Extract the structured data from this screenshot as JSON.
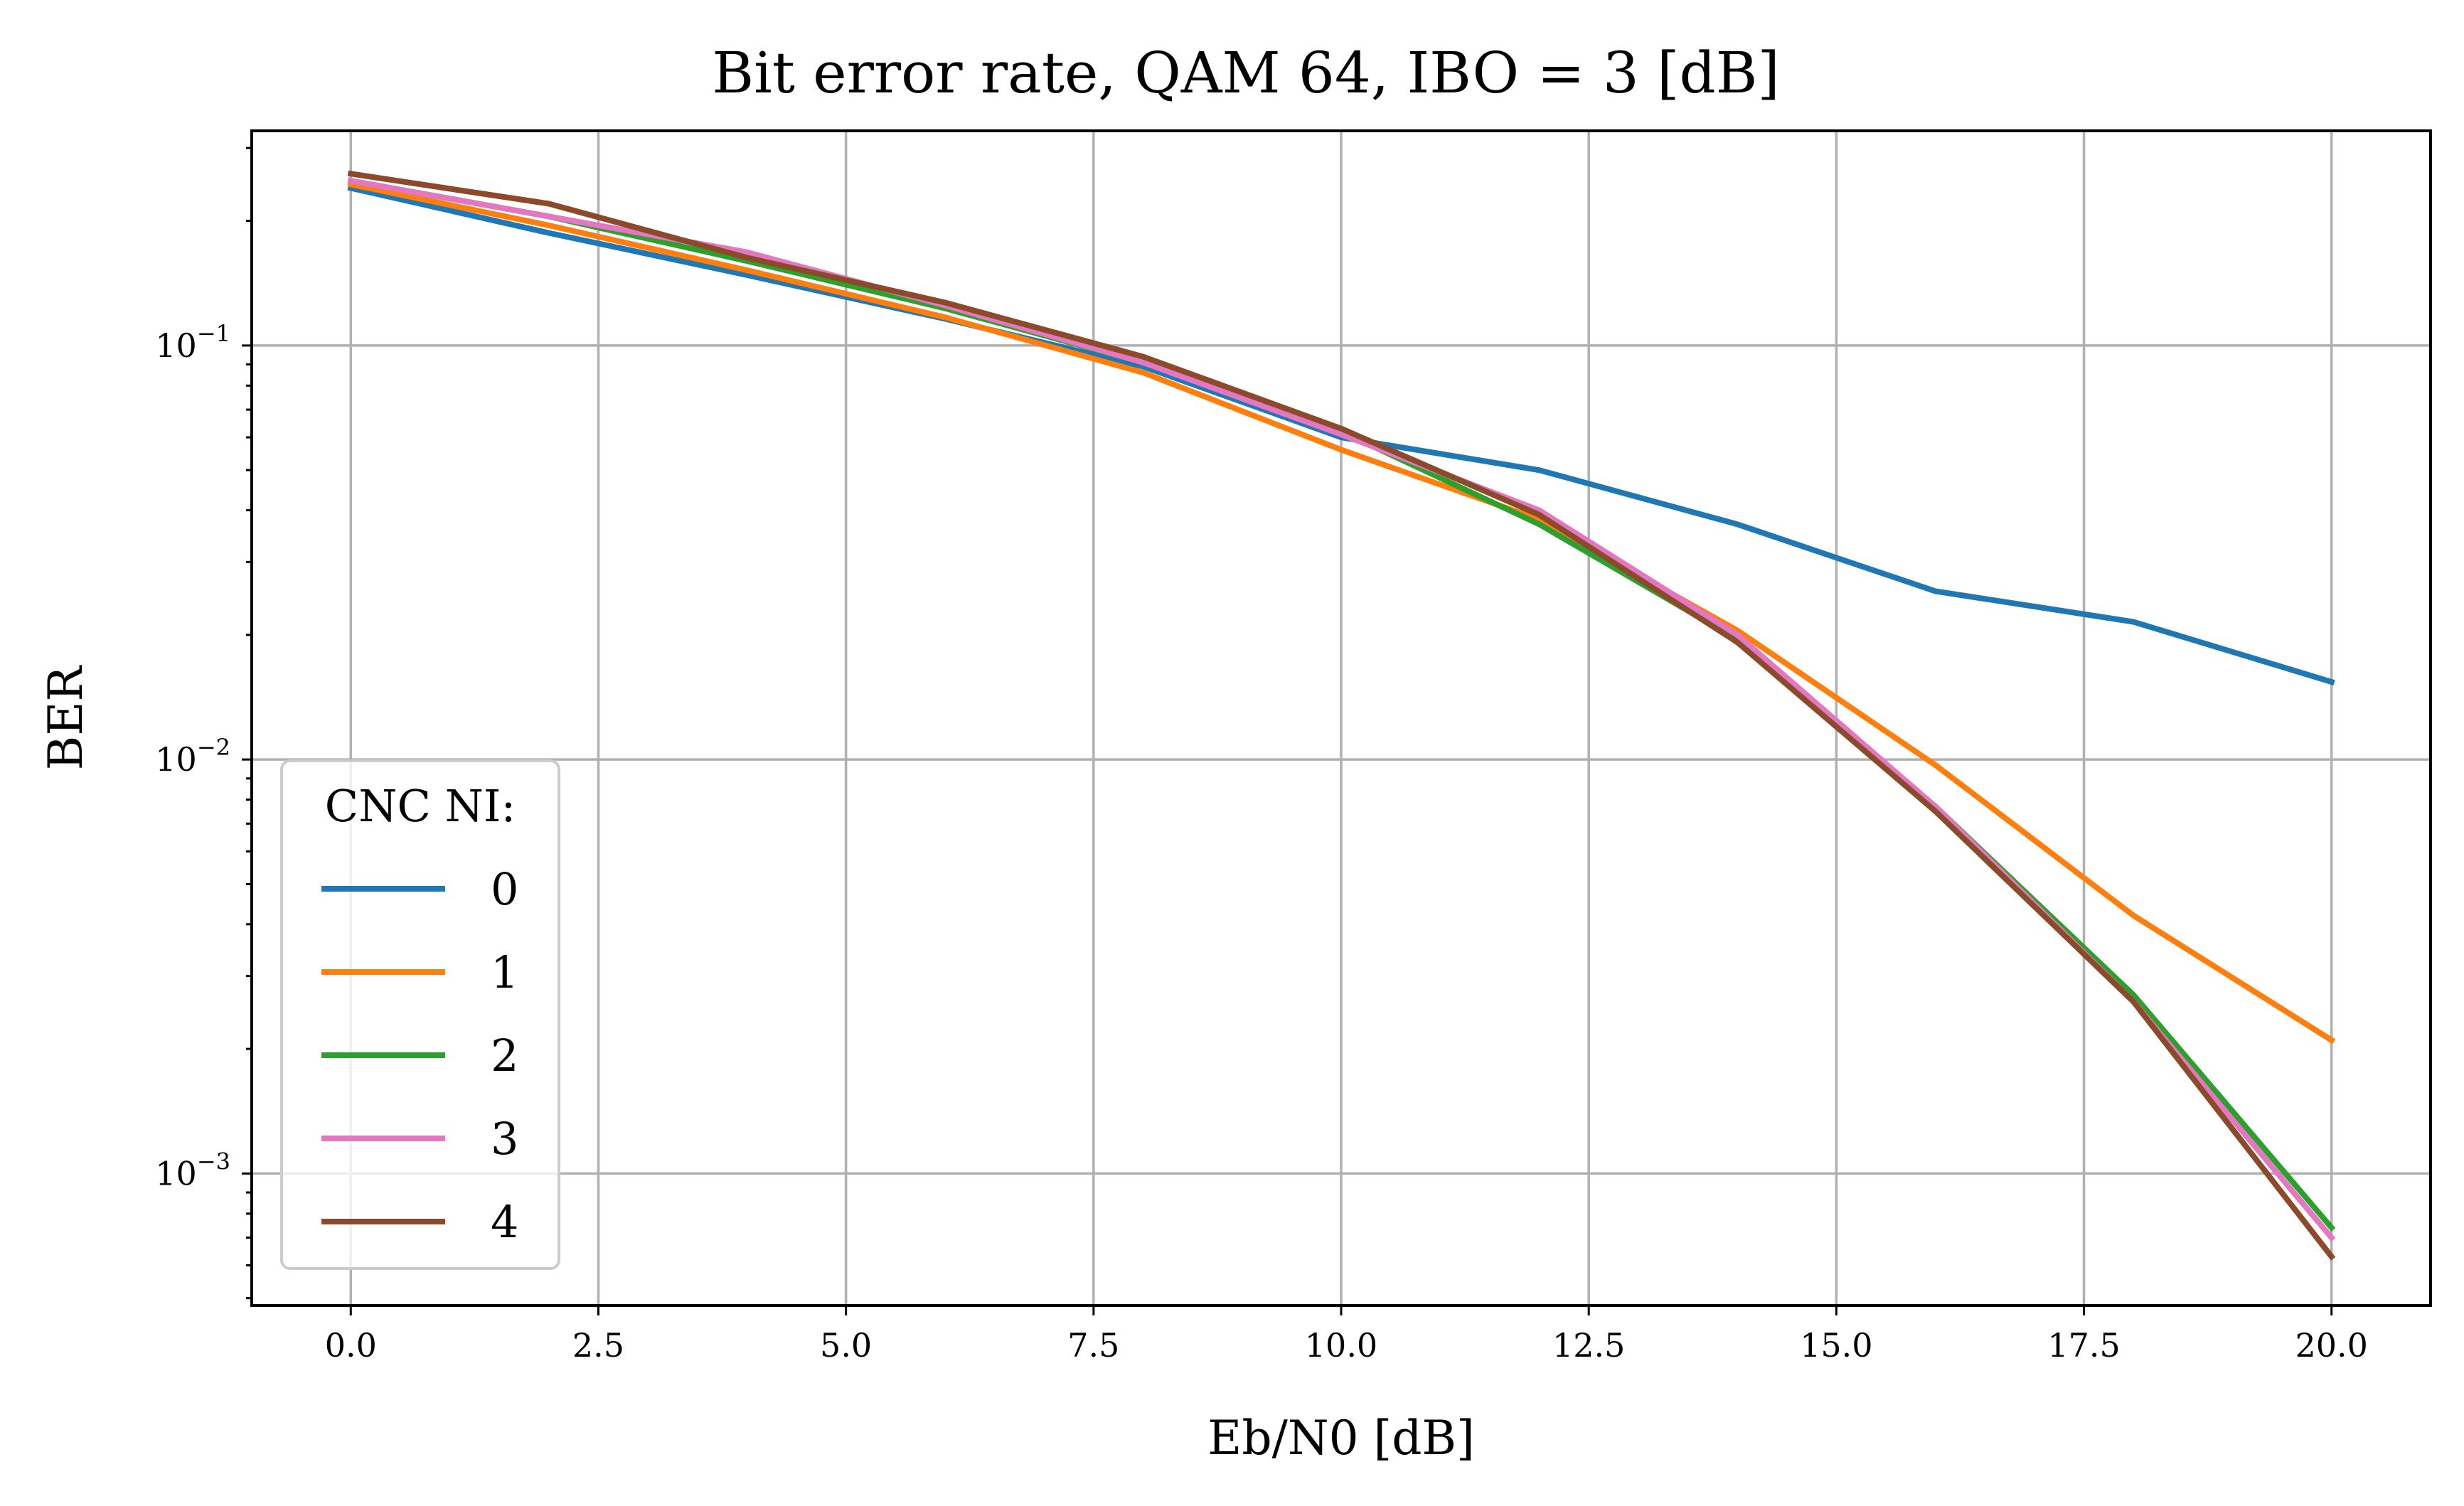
{
  "chart_data": {
    "type": "line",
    "title": "Bit error rate, QAM 64, IBO = 3 [dB]",
    "xlabel": "Eb/N0 [dB]",
    "ylabel": "BER",
    "xlim": [
      -1.0,
      21.0
    ],
    "ylim": [
      0.00048,
      0.33
    ],
    "yscale": "log",
    "grid": true,
    "x_ticks": [
      "0.0",
      "2.5",
      "5.0",
      "7.5",
      "10.0",
      "12.5",
      "15.0",
      "17.5",
      "20.0"
    ],
    "y_ticks": [
      {
        "value": 0.1,
        "base": "10",
        "exp": "−1"
      },
      {
        "value": 0.01,
        "base": "10",
        "exp": "−2"
      },
      {
        "value": 0.001,
        "base": "10",
        "exp": "−3"
      }
    ],
    "x": [
      0,
      2,
      4,
      6,
      8,
      10,
      12,
      14,
      16,
      18,
      20
    ],
    "legend": {
      "title": "CNC NI:",
      "position": "lower-left"
    },
    "series": [
      {
        "name": "0",
        "color": "#1f77b4",
        "values": [
          0.24,
          0.187,
          0.148,
          0.116,
          0.089,
          0.06,
          0.05,
          0.037,
          0.0255,
          0.0215,
          0.0154
        ]
      },
      {
        "name": "1",
        "color": "#ff7f0e",
        "values": [
          0.245,
          0.195,
          0.152,
          0.117,
          0.086,
          0.056,
          0.038,
          0.0205,
          0.0097,
          0.0042,
          0.0021
        ]
      },
      {
        "name": "2",
        "color": "#2ca02c",
        "values": [
          0.25,
          0.205,
          0.16,
          0.123,
          0.091,
          0.062,
          0.037,
          0.0195,
          0.0077,
          0.0027,
          0.00074
        ]
      },
      {
        "name": "3",
        "color": "#e377c2",
        "values": [
          0.25,
          0.205,
          0.168,
          0.125,
          0.091,
          0.061,
          0.04,
          0.02,
          0.0077,
          0.0026,
          0.0007
        ]
      },
      {
        "name": "4",
        "color": "#8c4a2a",
        "values": [
          0.26,
          0.22,
          0.163,
          0.127,
          0.094,
          0.063,
          0.039,
          0.0192,
          0.0075,
          0.0026,
          0.00063
        ]
      }
    ]
  }
}
